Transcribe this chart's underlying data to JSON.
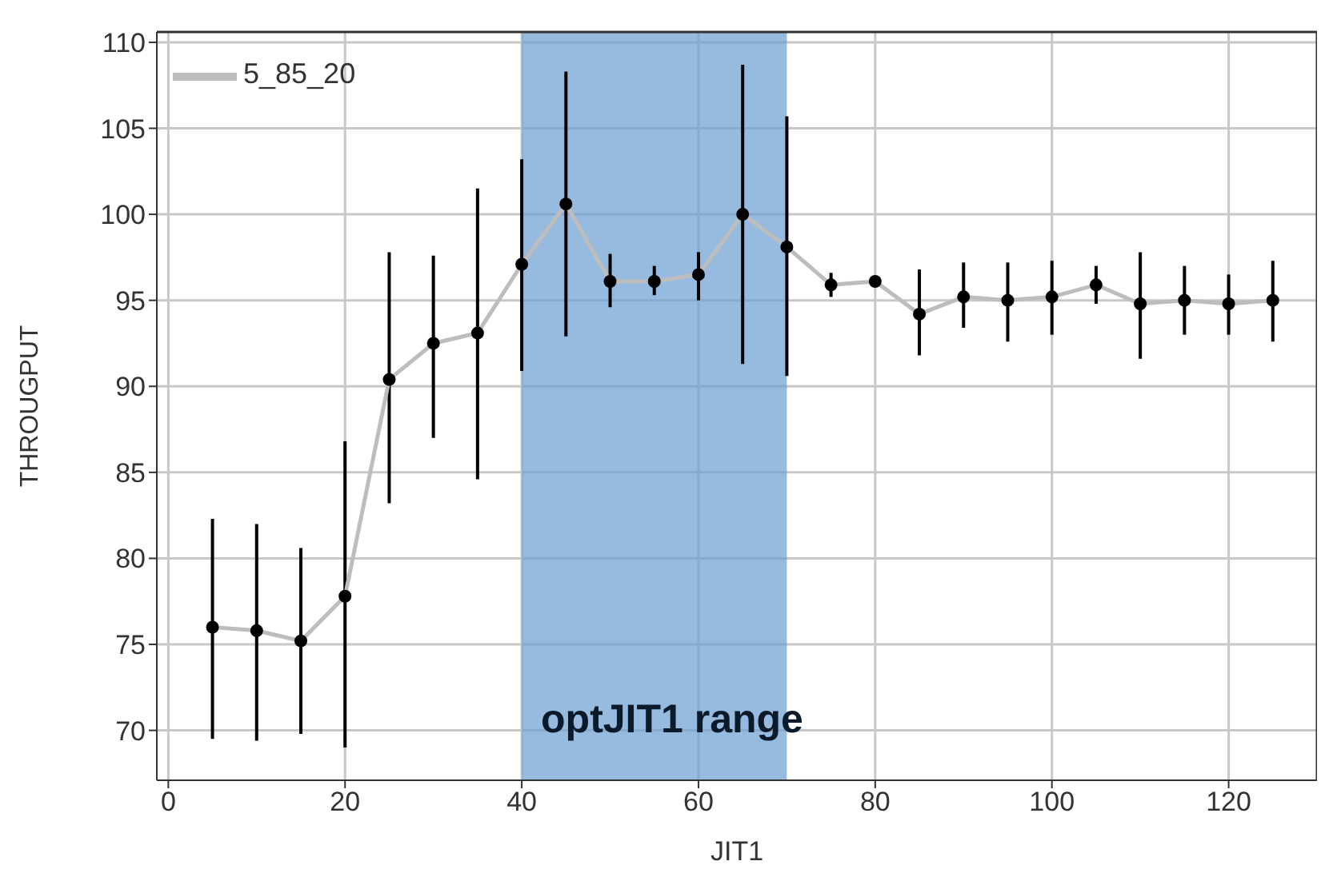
{
  "chart_data": {
    "type": "line",
    "xlabel": "JIT1",
    "ylabel": "THROUGPUT",
    "x": [
      5,
      10,
      15,
      20,
      25,
      30,
      35,
      40,
      45,
      50,
      55,
      60,
      65,
      70,
      75,
      80,
      85,
      90,
      95,
      100,
      105,
      110,
      115,
      120,
      125
    ],
    "series": [
      {
        "name": "5_85_20",
        "color": "#bdbdbd",
        "values": [
          76,
          75.8,
          75.2,
          77.8,
          90.4,
          92.5,
          93.1,
          97.1,
          100.6,
          96.1,
          96.1,
          96.5,
          100,
          98.1,
          95.9,
          96.1,
          94.2,
          95.2,
          95,
          95.2,
          95.9,
          94.8,
          95,
          94.8,
          95
        ],
        "errors": [
          [
            69.5,
            82.3
          ],
          [
            69.4,
            82
          ],
          [
            69.8,
            80.6
          ],
          [
            69,
            86.8
          ],
          [
            83.2,
            97.8
          ],
          [
            87,
            97.6
          ],
          [
            84.6,
            101.5
          ],
          [
            90.9,
            103.2
          ],
          [
            92.9,
            108.3
          ],
          [
            94.6,
            97.7
          ],
          [
            95.3,
            97
          ],
          [
            95,
            97.8
          ],
          [
            91.3,
            108.7
          ],
          [
            90.6,
            105.7
          ],
          [
            95.2,
            96.6
          ],
          [
            95.8,
            96.4
          ],
          [
            91.8,
            96.8
          ],
          [
            93.4,
            97.2
          ],
          [
            92.6,
            97.2
          ],
          [
            93,
            97.3
          ],
          [
            94.8,
            97
          ],
          [
            91.6,
            97.8
          ],
          [
            93,
            97
          ],
          [
            93,
            96.5
          ],
          [
            92.6,
            97.3
          ]
        ]
      }
    ],
    "marker": "circle",
    "line_style": "solid",
    "xlim": [
      -1.3,
      130
    ],
    "xticks": [
      0,
      20,
      40,
      60,
      80,
      100,
      120
    ],
    "ylim": [
      67.1,
      110.6
    ],
    "yticks": [
      70,
      75,
      80,
      85,
      90,
      95,
      100,
      105,
      110
    ],
    "grid": true,
    "legend": "top left",
    "bands": [
      {
        "axis": "x",
        "from": 40,
        "to": 70,
        "label": "optJIT1 range",
        "color": "#6a9ed2"
      }
    ]
  }
}
